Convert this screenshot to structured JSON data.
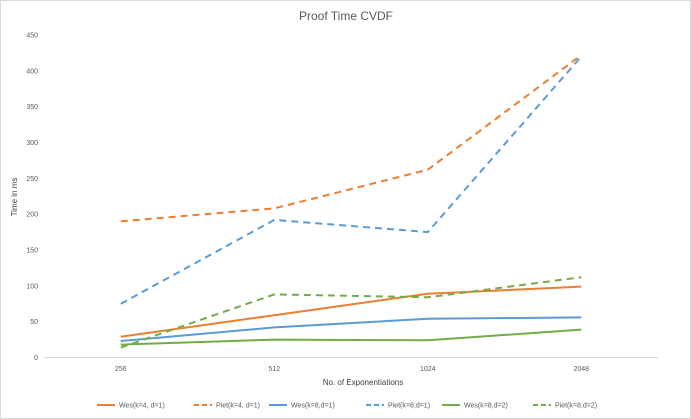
{
  "chart_data": {
    "type": "line",
    "title": "Proof Time CVDF",
    "xlabel": "No. of Exponentiations",
    "ylabel": "Time in ms",
    "categories": [
      "256",
      "512",
      "1024",
      "2048"
    ],
    "ylim": [
      0,
      450
    ],
    "yticks": [
      0,
      50,
      100,
      150,
      200,
      250,
      300,
      350,
      400,
      450
    ],
    "grid": false,
    "legend_position": "bottom",
    "series": [
      {
        "name": "Wes(k=4, d=1)",
        "color": "#ED7D31",
        "dashed": false,
        "values": [
          29,
          59,
          89,
          99
        ]
      },
      {
        "name": "Piet(k=4, d=1)",
        "color": "#ED7D31",
        "dashed": true,
        "values": [
          190,
          208,
          262,
          422
        ]
      },
      {
        "name": "Wes(k=8,d=1)",
        "color": "#5B9BD5",
        "dashed": false,
        "values": [
          23,
          42,
          54,
          56
        ]
      },
      {
        "name": "Piet(k=8,d=1)",
        "color": "#5B9BD5",
        "dashed": true,
        "values": [
          75,
          192,
          175,
          420
        ]
      },
      {
        "name": "Wes(k=8,d=2)",
        "color": "#70AD47",
        "dashed": false,
        "values": [
          18,
          25,
          24,
          39
        ]
      },
      {
        "name": "Piet(k=8,d=2)",
        "color": "#70AD47",
        "dashed": true,
        "values": [
          14,
          88,
          84,
          112
        ]
      }
    ]
  }
}
